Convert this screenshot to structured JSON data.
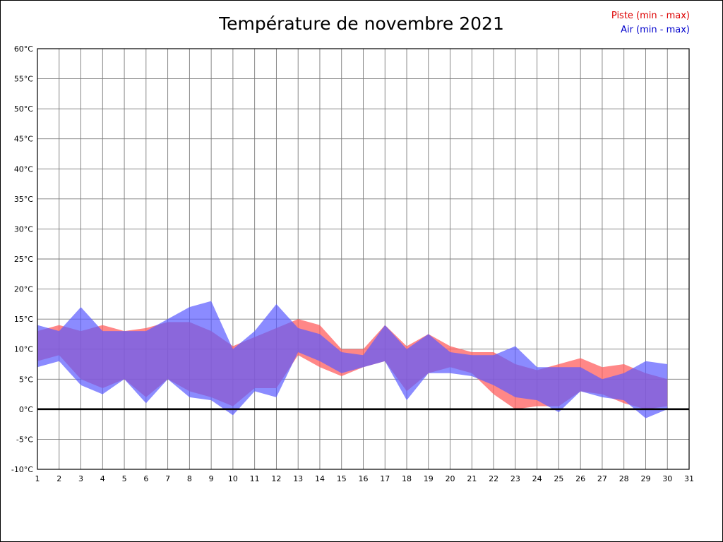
{
  "title": "Température de novembre 2021",
  "legend": {
    "piste_label": "Piste (min - max)",
    "air_label": "Air (min - max)"
  },
  "colors": {
    "piste_fill": "#ff5f5f",
    "piste_fill_opacity": 0.75,
    "piste_text": "#dd0000",
    "air_fill": "#5a5aff",
    "air_fill_opacity": 0.7,
    "air_text": "#0000cc",
    "grid": "#7a7a7a",
    "plot_border": "#000000",
    "zero_line": "#000000"
  },
  "chart_data": {
    "type": "area",
    "title": "Température de novembre 2021",
    "xlabel": "",
    "ylabel": "",
    "x_axis": {
      "min": 1,
      "max": 31,
      "tick_step": 1
    },
    "y_axis": {
      "min": -10,
      "max": 60,
      "tick_step": 5,
      "unit": "°C"
    },
    "grid": true,
    "legend_position": "top-right",
    "zero_line_value": 0,
    "days": [
      1,
      2,
      3,
      4,
      5,
      6,
      7,
      8,
      9,
      10,
      11,
      12,
      13,
      14,
      15,
      16,
      17,
      18,
      19,
      20,
      21,
      22,
      23,
      24,
      25,
      26,
      27,
      28,
      29,
      30
    ],
    "series": [
      {
        "name": "Piste (min - max)",
        "min": [
          8,
          9,
          5,
          3.5,
          5,
          2,
          5,
          3,
          2,
          0.5,
          3.5,
          3.5,
          9,
          7,
          5.5,
          7,
          8,
          3,
          6,
          7,
          6,
          2.5,
          0,
          0.5,
          0.5,
          3,
          2.5,
          1,
          0,
          0.5
        ],
        "max": [
          13,
          14,
          13,
          14,
          13,
          13.5,
          14.5,
          14.5,
          13,
          10.5,
          12,
          13.5,
          15,
          14,
          10,
          10,
          14,
          10.5,
          12.5,
          10.5,
          9.5,
          9.5,
          7.5,
          6.5,
          7.5,
          8.5,
          7,
          7.5,
          6,
          5
        ]
      },
      {
        "name": "Air (min - max)",
        "min": [
          7,
          8,
          4,
          2.5,
          5,
          1,
          5,
          2,
          1.5,
          -1,
          3,
          2,
          9.5,
          8,
          6,
          7,
          8,
          1.5,
          6,
          6,
          5.5,
          4,
          2,
          1.5,
          -0.5,
          3,
          2,
          1.5,
          -1.5,
          0
        ],
        "max": [
          14,
          13,
          17,
          13,
          13,
          13,
          15,
          17,
          18,
          10,
          13,
          17.5,
          13.5,
          12.5,
          9.5,
          9,
          14,
          10,
          12.5,
          9.5,
          9,
          9,
          10.5,
          7,
          7,
          7,
          5,
          6,
          8,
          7.5
        ]
      }
    ]
  }
}
